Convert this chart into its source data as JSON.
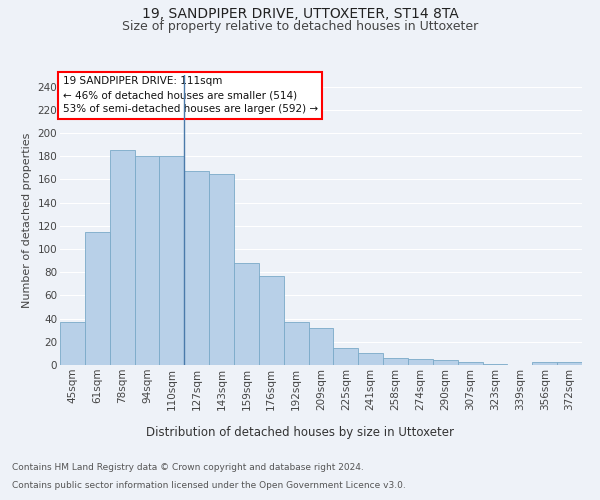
{
  "title1": "19, SANDPIPER DRIVE, UTTOXETER, ST14 8TA",
  "title2": "Size of property relative to detached houses in Uttoxeter",
  "xlabel": "Distribution of detached houses by size in Uttoxeter",
  "ylabel": "Number of detached properties",
  "categories": [
    "45sqm",
    "61sqm",
    "78sqm",
    "94sqm",
    "110sqm",
    "127sqm",
    "143sqm",
    "159sqm",
    "176sqm",
    "192sqm",
    "209sqm",
    "225sqm",
    "241sqm",
    "258sqm",
    "274sqm",
    "290sqm",
    "307sqm",
    "323sqm",
    "339sqm",
    "356sqm",
    "372sqm"
  ],
  "values": [
    37,
    115,
    185,
    180,
    180,
    167,
    165,
    88,
    77,
    37,
    32,
    15,
    10,
    6,
    5,
    4,
    3,
    1,
    0,
    3,
    3
  ],
  "bar_color": "#b8d0e8",
  "bar_edge_color": "#7aaac8",
  "vline_color": "#4a7aaa",
  "vline_x_index": 4,
  "annotation_text": "19 SANDPIPER DRIVE: 111sqm\n← 46% of detached houses are smaller (514)\n53% of semi-detached houses are larger (592) →",
  "annotation_box_facecolor": "white",
  "annotation_box_edgecolor": "red",
  "ylim": [
    0,
    250
  ],
  "yticks": [
    0,
    20,
    40,
    60,
    80,
    100,
    120,
    140,
    160,
    180,
    200,
    220,
    240
  ],
  "footer1": "Contains HM Land Registry data © Crown copyright and database right 2024.",
  "footer2": "Contains public sector information licensed under the Open Government Licence v3.0.",
  "background_color": "#eef2f8",
  "grid_color": "#ffffff",
  "title1_fontsize": 10,
  "title2_fontsize": 9,
  "xlabel_fontsize": 8.5,
  "ylabel_fontsize": 8,
  "tick_fontsize": 7.5,
  "annotation_fontsize": 7.5,
  "footer_fontsize": 6.5
}
